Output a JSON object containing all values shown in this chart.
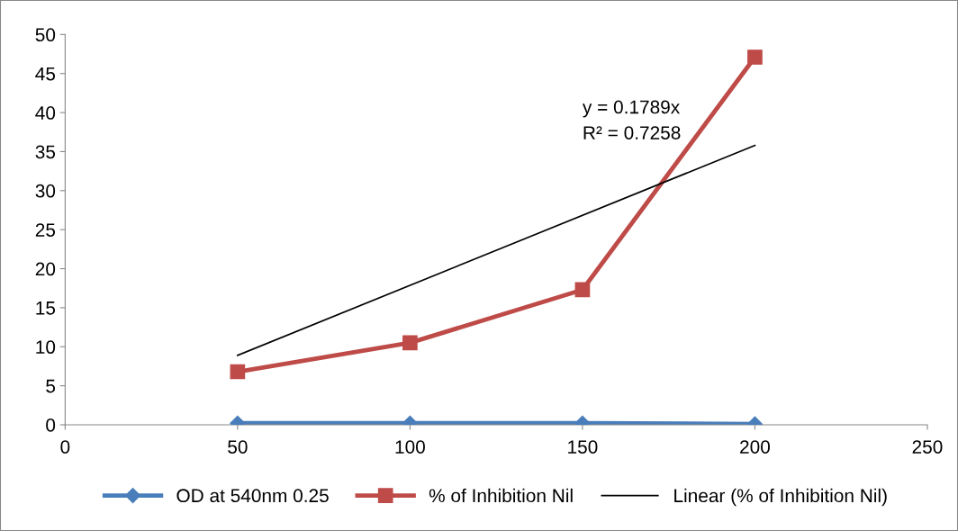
{
  "chart_data": {
    "type": "line",
    "x": [
      50,
      100,
      150,
      200
    ],
    "series": [
      {
        "name": "OD at 540nm 0.25",
        "color": "#4a7ebb",
        "marker": "diamond",
        "values": [
          0.2,
          0.2,
          0.2,
          0.1
        ]
      },
      {
        "name": "% of Inhibition Nil",
        "color": "#be4b48",
        "marker": "square",
        "values": [
          6.8,
          10.5,
          17.3,
          47.1
        ]
      },
      {
        "name": "Linear (% of Inhibition Nil)",
        "color": "#000000",
        "marker": "none",
        "x": [
          50,
          200
        ],
        "values": [
          8.9,
          35.8
        ]
      }
    ],
    "annotations": [
      "y = 0.1789x",
      "R² = 0.7258"
    ],
    "xlim": [
      0,
      250
    ],
    "xticks": [
      0,
      50,
      100,
      150,
      200,
      250
    ],
    "ylim": [
      0,
      50
    ],
    "yticks": [
      0,
      5,
      10,
      15,
      20,
      25,
      30,
      35,
      40,
      45,
      50
    ],
    "grid": false,
    "legend": "bottom"
  }
}
